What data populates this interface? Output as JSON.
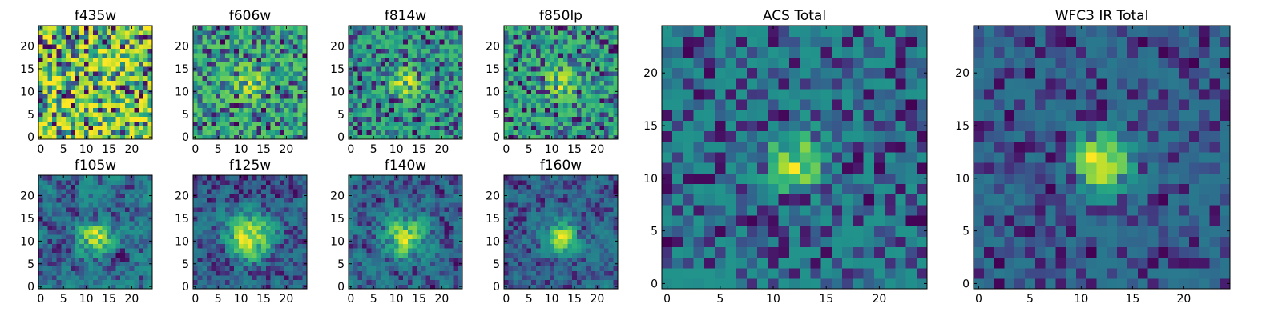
{
  "figure_title": "",
  "colors": {
    "colormap": "viridis",
    "frame": "#000000",
    "background": "#ffffff"
  },
  "chart_data": [
    {
      "type": "heatmap",
      "title": "f435w",
      "xlabel": "",
      "ylabel": "",
      "xticks": [
        0,
        5,
        10,
        15,
        20
      ],
      "yticks": [
        0,
        5,
        10,
        15,
        20
      ],
      "xlim": [
        0,
        25
      ],
      "ylim": [
        0,
        25
      ],
      "grid_size": 25,
      "seed": 11,
      "noise": 0.55,
      "smooth": 0,
      "source_peak": 0.0,
      "source_center": [
        12,
        12
      ],
      "source_sigma": 2.5
    },
    {
      "type": "heatmap",
      "title": "f606w",
      "xlabel": "",
      "ylabel": "",
      "xticks": [
        0,
        5,
        10,
        15,
        20
      ],
      "yticks": [
        0,
        5,
        10,
        15,
        20
      ],
      "xlim": [
        0,
        25
      ],
      "ylim": [
        0,
        25
      ],
      "grid_size": 25,
      "seed": 23,
      "noise": 0.6,
      "smooth": 0,
      "source_peak": 0.2,
      "source_center": [
        12,
        12
      ],
      "source_sigma": 2.5
    },
    {
      "type": "heatmap",
      "title": "f814w",
      "xlabel": "",
      "ylabel": "",
      "xticks": [
        0,
        5,
        10,
        15,
        20
      ],
      "yticks": [
        0,
        5,
        10,
        15,
        20
      ],
      "xlim": [
        0,
        25
      ],
      "ylim": [
        0,
        25
      ],
      "grid_size": 25,
      "seed": 37,
      "noise": 0.55,
      "smooth": 0,
      "source_peak": 0.3,
      "source_center": [
        12,
        12
      ],
      "source_sigma": 2.2
    },
    {
      "type": "heatmap",
      "title": "f850lp",
      "xlabel": "",
      "ylabel": "",
      "xticks": [
        0,
        5,
        10,
        15,
        20
      ],
      "yticks": [
        0,
        5,
        10,
        15,
        20
      ],
      "xlim": [
        0,
        25
      ],
      "ylim": [
        0,
        25
      ],
      "grid_size": 25,
      "seed": 41,
      "noise": 0.55,
      "smooth": 0,
      "source_peak": 0.25,
      "source_center": [
        12,
        12
      ],
      "source_sigma": 2.2
    },
    {
      "type": "heatmap",
      "title": "f105w",
      "xlabel": "",
      "ylabel": "",
      "xticks": [
        0,
        5,
        10,
        15,
        20
      ],
      "yticks": [
        0,
        5,
        10,
        15,
        20
      ],
      "xlim": [
        0,
        25
      ],
      "ylim": [
        0,
        25
      ],
      "grid_size": 25,
      "seed": 53,
      "noise": 0.6,
      "smooth": 1,
      "source_peak": 0.5,
      "source_center": [
        12,
        11
      ],
      "source_sigma": 2.5
    },
    {
      "type": "heatmap",
      "title": "f125w",
      "xlabel": "",
      "ylabel": "",
      "xticks": [
        0,
        5,
        10,
        15,
        20
      ],
      "yticks": [
        0,
        5,
        10,
        15,
        20
      ],
      "xlim": [
        0,
        25
      ],
      "ylim": [
        0,
        25
      ],
      "grid_size": 25,
      "seed": 67,
      "noise": 0.55,
      "smooth": 1,
      "source_peak": 0.55,
      "source_center": [
        12,
        11
      ],
      "source_sigma": 3.5
    },
    {
      "type": "heatmap",
      "title": "f140w",
      "xlabel": "",
      "ylabel": "",
      "xticks": [
        0,
        5,
        10,
        15,
        20
      ],
      "yticks": [
        0,
        5,
        10,
        15,
        20
      ],
      "xlim": [
        0,
        25
      ],
      "ylim": [
        0,
        25
      ],
      "grid_size": 25,
      "seed": 79,
      "noise": 0.6,
      "smooth": 1,
      "source_peak": 0.5,
      "source_center": [
        12,
        11
      ],
      "source_sigma": 3.0
    },
    {
      "type": "heatmap",
      "title": "f160w",
      "xlabel": "",
      "ylabel": "",
      "xticks": [
        0,
        5,
        10,
        15,
        20
      ],
      "yticks": [
        0,
        5,
        10,
        15,
        20
      ],
      "xlim": [
        0,
        25
      ],
      "ylim": [
        0,
        25
      ],
      "grid_size": 25,
      "seed": 83,
      "noise": 0.6,
      "smooth": 1,
      "source_peak": 0.5,
      "source_center": [
        12,
        11
      ],
      "source_sigma": 2.5
    },
    {
      "type": "heatmap",
      "title": "ACS Total",
      "xlabel": "",
      "ylabel": "",
      "xticks": [
        0,
        5,
        10,
        15,
        20
      ],
      "yticks": [
        0,
        5,
        10,
        15,
        20
      ],
      "xlim": [
        0,
        25
      ],
      "ylim": [
        0,
        25
      ],
      "grid_size": 25,
      "seed": 97,
      "noise": 0.5,
      "smooth": 0,
      "source_peak": 0.5,
      "source_center": [
        12,
        11.5
      ],
      "source_sigma": 1.8
    },
    {
      "type": "heatmap",
      "title": "WFC3 IR Total",
      "xlabel": "",
      "ylabel": "",
      "xticks": [
        0,
        5,
        10,
        15,
        20
      ],
      "yticks": [
        0,
        5,
        10,
        15,
        20
      ],
      "xlim": [
        0,
        25
      ],
      "ylim": [
        0,
        25
      ],
      "grid_size": 25,
      "seed": 101,
      "noise": 0.4,
      "smooth": 0,
      "source_peak": 0.7,
      "source_center": [
        12,
        11.5
      ],
      "source_sigma": 1.8
    }
  ]
}
